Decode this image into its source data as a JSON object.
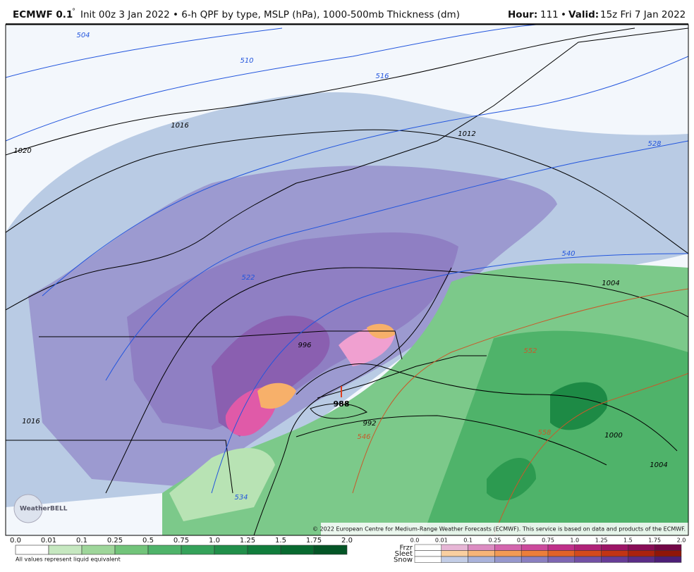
{
  "header": {
    "model": "ECMWF 0.1",
    "degree": "°",
    "description": "Init 00z 3 Jan 2022 • 6-h QPF by type, MSLP (hPa), 1000-500mb Thickness (dm)",
    "hour_label": "Hour:",
    "hour": "111",
    "bullet": "•",
    "valid_label": "Valid:",
    "valid": "15z Fri 7 Jan 2022"
  },
  "map": {
    "contour_labels": [
      "504",
      "510",
      "516",
      "1016",
      "1020",
      "1012",
      "528",
      "540",
      "1004",
      "552",
      "996",
      "988",
      "992",
      "546",
      "558",
      "1000",
      "1004",
      "1016",
      "534",
      "522"
    ],
    "copyright": "© 2022 European Centre for Medium-Range Weather Forecasts (ECMWF). This service is based on data and products of the ECMWF.",
    "logo": "WeatherBELL"
  },
  "legend": {
    "rain_ticks": [
      "0.0",
      "0.01",
      "0.1",
      "0.25",
      "0.5",
      "0.75",
      "1.0",
      "1.25",
      "1.5",
      "1.75",
      "2.0"
    ],
    "note": "All values represent liquid equivalent",
    "mixed_rows": [
      "Frzr",
      "Sleet",
      "Snow"
    ],
    "mixed_ticks": [
      "0.0",
      "0.01",
      "0.1",
      "0.25",
      "0.5",
      "0.75",
      "1.0",
      "1.25",
      "1.5",
      "1.75",
      "2.0"
    ]
  }
}
